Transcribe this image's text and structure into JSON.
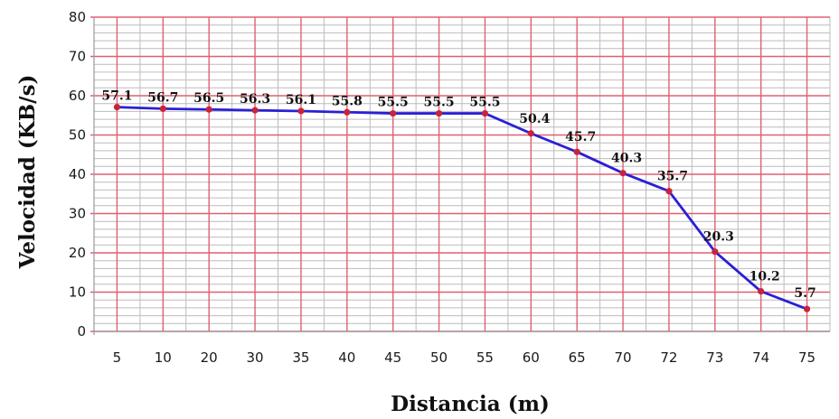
{
  "chart_data": {
    "type": "line",
    "title": "",
    "xlabel": "Distancia (m)",
    "ylabel": "Velocidad (KB/s)",
    "categories": [
      "5",
      "10",
      "20",
      "30",
      "35",
      "40",
      "45",
      "50",
      "55",
      "60",
      "65",
      "70",
      "72",
      "73",
      "74",
      "75"
    ],
    "series": [
      {
        "values": [
          57.1,
          56.7,
          56.5,
          56.3,
          56.1,
          55.8,
          55.5,
          55.5,
          55.5,
          50.4,
          45.7,
          40.3,
          35.7,
          20.3,
          10.2,
          5.7
        ],
        "labels": [
          "57.1",
          "56.7",
          "56.5",
          "56.3",
          "56.1",
          "55.8",
          "55.5",
          "55.5",
          "55.5",
          "50.4",
          "45.7",
          "40.3",
          "35.7",
          "20.3",
          "10.2",
          "5.7"
        ]
      }
    ],
    "yticks": [
      "0",
      "10",
      "20",
      "30",
      "40",
      "50",
      "60",
      "70",
      "80"
    ],
    "ylim": [
      0,
      80
    ],
    "grid": true,
    "legend": "none",
    "colors": {
      "major_grid": "#e06070",
      "minor_grid": "#bcbcbc",
      "line": "#2a1fd6",
      "marker": "#c8243c"
    }
  }
}
